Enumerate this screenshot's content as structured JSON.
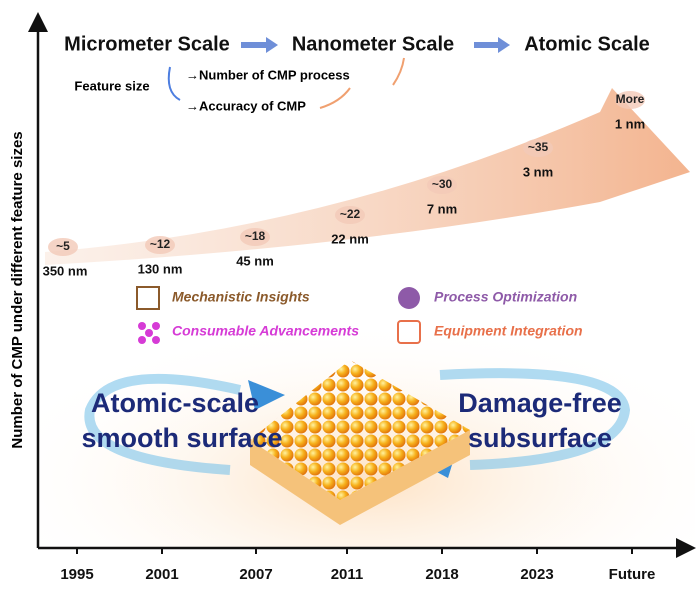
{
  "y_axis_label": "Number of CMP under different feature sizes",
  "x_axis": {
    "categories": [
      "1995",
      "2001",
      "2007",
      "2011",
      "2018",
      "2023",
      "Future"
    ]
  },
  "scales": [
    "Micrometer Scale",
    "Nanometer Scale",
    "Atomic Scale"
  ],
  "feature": {
    "label": "Feature size",
    "items": [
      "→Number of CMP process",
      "→Accuracy of CMP"
    ]
  },
  "points": [
    {
      "count": "~5",
      "size": "350 nm"
    },
    {
      "count": "~12",
      "size": "130 nm"
    },
    {
      "count": "~18",
      "size": "45 nm"
    },
    {
      "count": "~22",
      "size": "22 nm"
    },
    {
      "count": "~30",
      "size": "7 nm"
    },
    {
      "count": "~35",
      "size": "3 nm"
    },
    {
      "count": "More",
      "size": "1 nm"
    }
  ],
  "factors": [
    "Mechanistic Insights",
    "Process Optimization",
    "Consumable Advancements",
    "Equipment Integration"
  ],
  "center": {
    "left_lines": [
      "Atomic-scale",
      "smooth surface"
    ],
    "right_lines": [
      "Damage-free",
      "subsurface"
    ]
  }
}
